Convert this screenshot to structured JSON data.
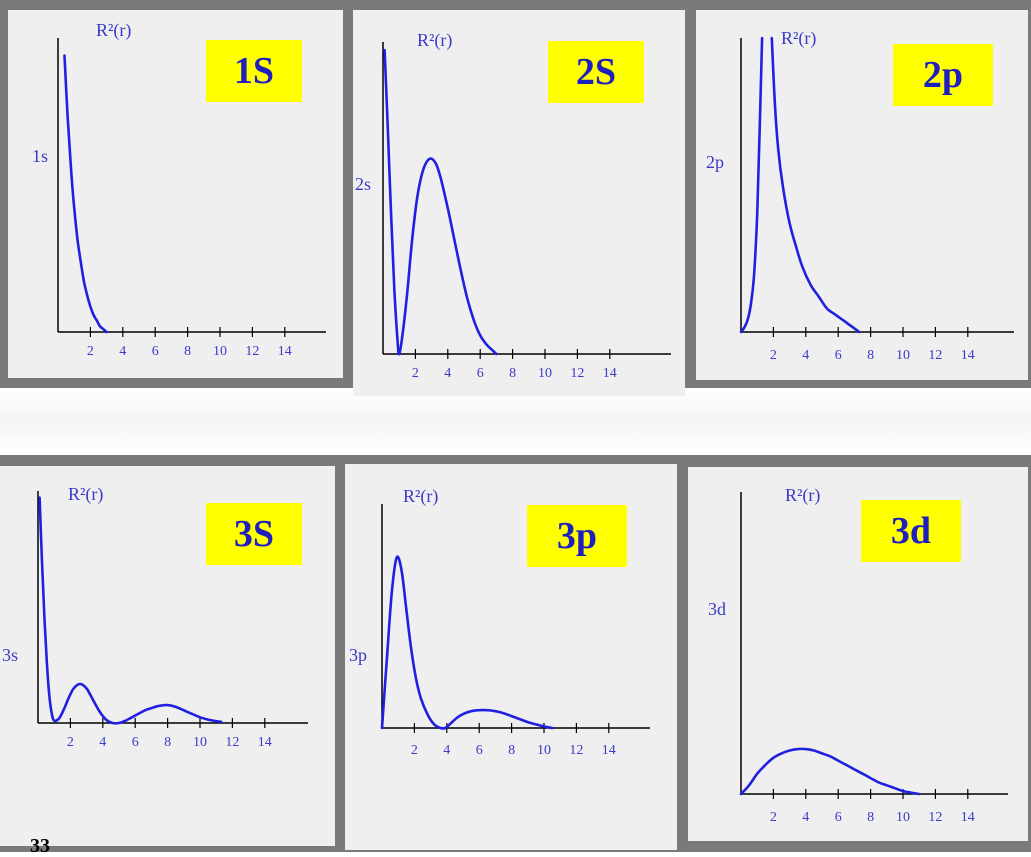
{
  "slide": {
    "page_number": "33"
  },
  "colors": {
    "curve": "#2020e0",
    "label": "#3a3ac8",
    "badge_bg": "#ffff00",
    "badge_text": "#1f1fc0",
    "axis": "#000000",
    "panel_bg": "#efefef"
  },
  "chart_data": [
    {
      "id": "p1s",
      "type": "line",
      "badge": "1S",
      "ylabel_top": "R²(r)",
      "orbital_label": "1s",
      "xticks": [
        "2",
        "4",
        "6",
        "8",
        "10",
        "12",
        "14"
      ],
      "xlim": [
        0,
        16
      ],
      "ylim": [
        0,
        1.0
      ],
      "series": [
        {
          "x": [
            0.4,
            0.6,
            0.8,
            1.0,
            1.2,
            1.4,
            1.6,
            1.8,
            2.0,
            2.2,
            2.4,
            2.6,
            2.8,
            3.0
          ],
          "y": [
            0.98,
            0.76,
            0.58,
            0.44,
            0.33,
            0.25,
            0.18,
            0.13,
            0.09,
            0.06,
            0.04,
            0.02,
            0.01,
            0.0
          ]
        }
      ]
    },
    {
      "id": "p2s",
      "type": "line",
      "badge": "2S",
      "ylabel_top": "R²(r)",
      "orbital_label": "2s",
      "xticks": [
        "2",
        "4",
        "6",
        "8",
        "10",
        "12",
        "14"
      ],
      "xlim": [
        0,
        16
      ],
      "ylim": [
        0,
        1.0
      ],
      "series": [
        {
          "x": [
            0.1,
            0.3,
            0.5,
            0.7,
            0.9,
            1.0,
            1.2,
            1.5,
            1.8,
            2.1,
            2.4,
            2.7,
            3.0,
            3.3,
            3.6,
            4.0,
            4.4,
            4.8,
            5.2,
            5.6,
            6.0,
            6.4,
            6.8,
            7.0
          ],
          "y": [
            0.98,
            0.72,
            0.45,
            0.21,
            0.04,
            0.0,
            0.06,
            0.2,
            0.37,
            0.5,
            0.58,
            0.62,
            0.63,
            0.61,
            0.56,
            0.47,
            0.37,
            0.27,
            0.18,
            0.11,
            0.06,
            0.03,
            0.01,
            0.0
          ]
        }
      ]
    },
    {
      "id": "p2p",
      "type": "line",
      "badge": "2p",
      "ylabel_top": "R²(r)",
      "orbital_label": "2p",
      "xticks": [
        "2",
        "4",
        "6",
        "8",
        "10",
        "12",
        "14"
      ],
      "xlim": [
        0,
        16
      ],
      "ylim": [
        0,
        1.0
      ],
      "series": [
        {
          "x": [
            0.0,
            0.2,
            0.4,
            0.6,
            0.8,
            1.0,
            1.15,
            1.3
          ],
          "y": [
            0.0,
            0.015,
            0.04,
            0.09,
            0.19,
            0.4,
            0.68,
            1.0
          ]
        },
        {
          "x": [
            1.9,
            2.1,
            2.3,
            2.6,
            3.0,
            3.4,
            3.8,
            4.3,
            4.8,
            5.3,
            5.8,
            6.3,
            6.8,
            7.3
          ],
          "y": [
            1.0,
            0.77,
            0.62,
            0.49,
            0.37,
            0.29,
            0.22,
            0.16,
            0.12,
            0.08,
            0.06,
            0.04,
            0.02,
            0.0
          ]
        }
      ]
    },
    {
      "id": "p3s",
      "type": "line",
      "badge": "3S",
      "ylabel_top": "R²(r)",
      "orbital_label": "3s",
      "xticks": [
        "2",
        "4",
        "6",
        "8",
        "10",
        "12",
        "14"
      ],
      "xlim": [
        0,
        16
      ],
      "ylim": [
        0,
        1.0
      ],
      "series": [
        {
          "x": [
            0.1,
            0.25,
            0.4,
            0.55,
            0.7,
            0.85,
            1.0,
            1.3,
            1.6,
            1.9,
            2.2,
            2.6,
            3.0,
            3.4,
            3.8,
            4.2,
            4.6,
            5.0,
            5.4,
            5.8,
            6.2,
            6.6,
            7.0,
            7.5,
            8.0,
            8.5,
            9.0,
            9.5,
            10.0,
            10.5,
            11.0,
            11.3
          ],
          "y": [
            0.98,
            0.7,
            0.45,
            0.26,
            0.12,
            0.04,
            0.01,
            0.02,
            0.06,
            0.11,
            0.15,
            0.17,
            0.15,
            0.1,
            0.05,
            0.015,
            0.0,
            0.0,
            0.01,
            0.025,
            0.04,
            0.055,
            0.065,
            0.075,
            0.078,
            0.07,
            0.055,
            0.04,
            0.025,
            0.015,
            0.008,
            0.005
          ]
        }
      ]
    },
    {
      "id": "p3p",
      "type": "line",
      "badge": "3p",
      "ylabel_top": "R²(r)",
      "orbital_label": "3p",
      "xticks": [
        "2",
        "4",
        "6",
        "8",
        "10",
        "12",
        "14"
      ],
      "xlim": [
        0,
        16
      ],
      "ylim": [
        0,
        1.0
      ],
      "series": [
        {
          "x": [
            0.0,
            0.3,
            0.6,
            0.9,
            1.2,
            1.5,
            1.8,
            2.1,
            2.4,
            2.8,
            3.2,
            3.6,
            3.9,
            4.2,
            4.6,
            5.0,
            5.5,
            6.0,
            6.5,
            7.0,
            7.5,
            8.0,
            8.5,
            9.0,
            9.5,
            10.0,
            10.5
          ],
          "y": [
            0.0,
            0.35,
            0.68,
            0.86,
            0.8,
            0.6,
            0.4,
            0.25,
            0.15,
            0.07,
            0.02,
            0.0,
            0.0,
            0.02,
            0.05,
            0.07,
            0.085,
            0.09,
            0.09,
            0.085,
            0.075,
            0.06,
            0.045,
            0.03,
            0.018,
            0.008,
            0.0
          ]
        }
      ]
    },
    {
      "id": "p3d",
      "type": "line",
      "badge": "3d",
      "ylabel_top": "R²(r)",
      "orbital_label": "3d",
      "xticks": [
        "2",
        "4",
        "6",
        "8",
        "10",
        "12",
        "14"
      ],
      "xlim": [
        0,
        16
      ],
      "ylim": [
        0,
        1.0
      ],
      "series": [
        {
          "x": [
            0.0,
            0.5,
            1.0,
            1.5,
            2.0,
            2.5,
            3.0,
            3.5,
            4.0,
            4.5,
            5.0,
            5.5,
            6.0,
            6.5,
            7.0,
            7.5,
            8.0,
            8.5,
            9.0,
            9.5,
            10.0,
            10.5,
            11.0
          ],
          "y": [
            0.0,
            0.03,
            0.07,
            0.1,
            0.125,
            0.14,
            0.15,
            0.155,
            0.155,
            0.15,
            0.14,
            0.13,
            0.115,
            0.1,
            0.085,
            0.07,
            0.055,
            0.04,
            0.03,
            0.02,
            0.01,
            0.005,
            0.0
          ]
        }
      ]
    }
  ]
}
